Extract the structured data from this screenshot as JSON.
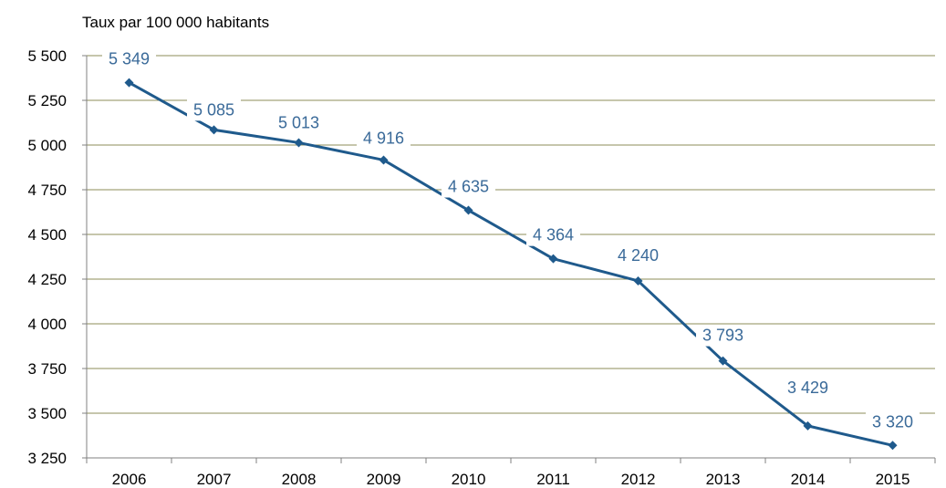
{
  "chart_data": {
    "type": "line",
    "title": "",
    "xlabel": "",
    "ylabel": "Taux par 100 000 habitants",
    "x": [
      "2006",
      "2007",
      "2008",
      "2009",
      "2010",
      "2011",
      "2012",
      "2013",
      "2014",
      "2015"
    ],
    "series": [
      {
        "values": [
          5349,
          5085,
          5013,
          4916,
          4635,
          4364,
          4240,
          3793,
          3429,
          3320
        ],
        "labels": [
          "5 349",
          "5 085",
          "5 013",
          "4 916",
          "4 635",
          "4 364",
          "4 240",
          "3 793",
          "3 429",
          "3 320"
        ]
      }
    ],
    "ylim": [
      3250,
      5500
    ],
    "yticks": [
      3250,
      3500,
      3750,
      4000,
      4250,
      4500,
      4750,
      5000,
      5250,
      5500
    ],
    "ytick_labels": [
      "3 250",
      "3 500",
      "3 750",
      "4 000",
      "4 250",
      "4 500",
      "4 750",
      "5 000",
      "5 250",
      "5 500"
    ],
    "grid": "horizontal",
    "legend": "none",
    "colors": {
      "line": "#1f5a8c",
      "label": "#3a6a99",
      "grid": "#8c8c5a",
      "axis": "#808080",
      "text": "#000000"
    }
  }
}
